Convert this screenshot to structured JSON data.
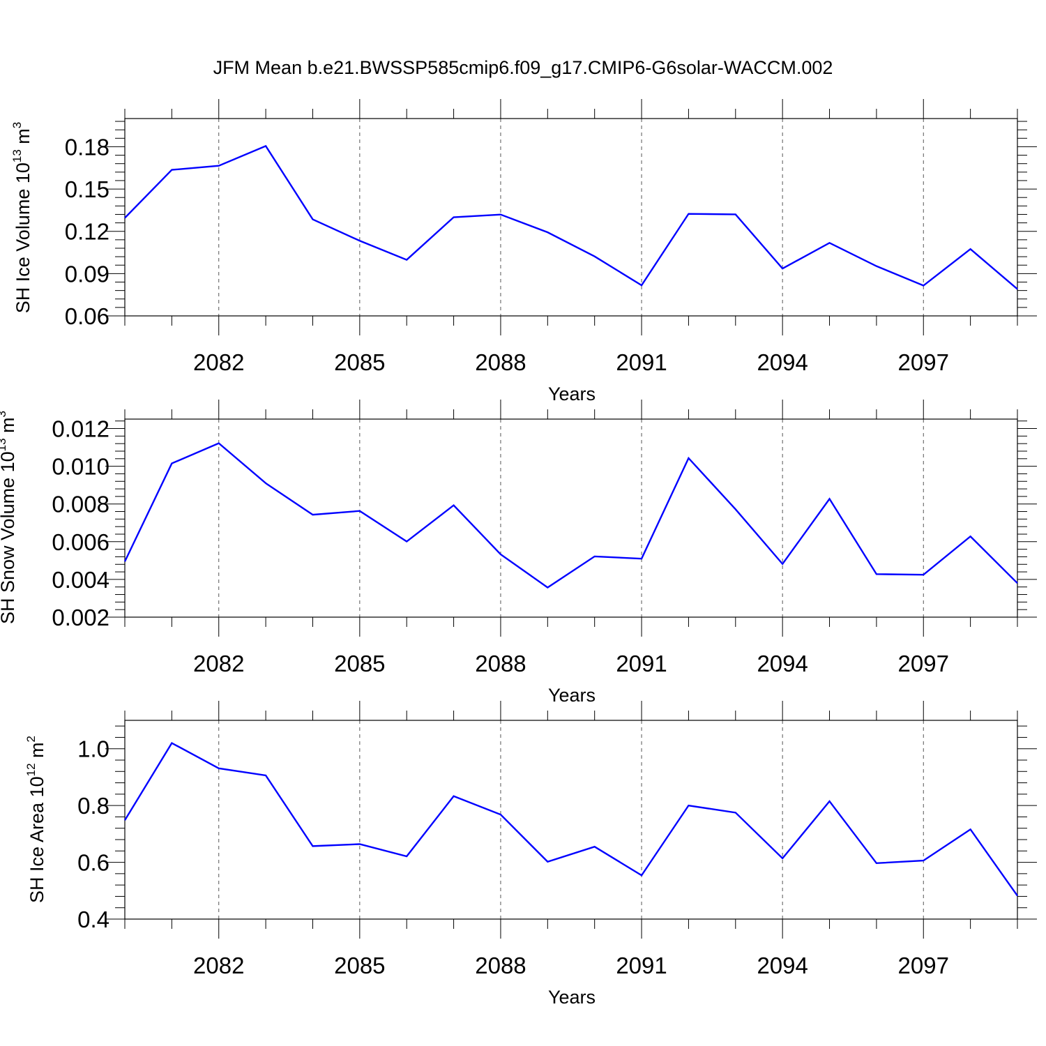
{
  "title": "JFM Mean b.e21.BWSSP585cmip6.f09_g17.CMIP6-G6solar-WACCM.002",
  "chart_data": [
    {
      "type": "line",
      "ylabel": "SH Ice Volume 10",
      "ylabel_exp": "13",
      "ylabel_unit": " m",
      "ylabel_unit_exp": "3",
      "xlabel": "Years",
      "xlim": [
        2080,
        2099
      ],
      "ylim": [
        0.06,
        0.2
      ],
      "yticks": [
        0.06,
        0.09,
        0.12,
        0.15,
        0.18
      ],
      "ytick_labels": [
        "0.06",
        "0.09",
        "0.12",
        "0.15",
        "0.18"
      ],
      "xticks": [
        2082,
        2085,
        2088,
        2091,
        2094,
        2097
      ],
      "xtick_labels": [
        "2082",
        "2085",
        "2088",
        "2091",
        "2094",
        "2097"
      ],
      "grid": "vertical dashed at major x ticks",
      "color": "#0000ff",
      "x": [
        2080,
        2081,
        2082,
        2083,
        2084,
        2085,
        2086,
        2087,
        2088,
        2089,
        2090,
        2091,
        2092,
        2093,
        2094,
        2095,
        2096,
        2097,
        2098,
        2099
      ],
      "values": [
        0.1295,
        0.1636,
        0.1665,
        0.1805,
        0.1285,
        0.1133,
        0.0998,
        0.13,
        0.1319,
        0.1193,
        0.1022,
        0.0817,
        0.1324,
        0.132,
        0.0936,
        0.1118,
        0.0953,
        0.0815,
        0.1074,
        0.079
      ]
    },
    {
      "type": "line",
      "ylabel": "SH Snow Volume 10",
      "ylabel_exp": "13",
      "ylabel_unit": " m",
      "ylabel_unit_exp": "3",
      "xlabel": "Years",
      "xlim": [
        2080,
        2099
      ],
      "ylim": [
        0.002,
        0.0125
      ],
      "yticks": [
        0.002,
        0.004,
        0.006,
        0.008,
        0.01,
        0.012
      ],
      "ytick_labels": [
        "0.002",
        "0.004",
        "0.006",
        "0.008",
        "0.010",
        "0.012"
      ],
      "xticks": [
        2082,
        2085,
        2088,
        2091,
        2094,
        2097
      ],
      "xtick_labels": [
        "2082",
        "2085",
        "2088",
        "2091",
        "2094",
        "2097"
      ],
      "grid": "vertical dashed at major x ticks",
      "color": "#0000ff",
      "x": [
        2080,
        2081,
        2082,
        2083,
        2084,
        2085,
        2086,
        2087,
        2088,
        2089,
        2090,
        2091,
        2092,
        2093,
        2094,
        2095,
        2096,
        2097,
        2098,
        2099
      ],
      "values": [
        0.00495,
        0.01015,
        0.01122,
        0.0091,
        0.00743,
        0.00763,
        0.00601,
        0.00793,
        0.00533,
        0.00357,
        0.00522,
        0.0051,
        0.01043,
        0.00772,
        0.00482,
        0.00827,
        0.00428,
        0.00425,
        0.00628,
        0.0038
      ]
    },
    {
      "type": "line",
      "ylabel": "SH Ice Area 10",
      "ylabel_exp": "12",
      "ylabel_unit": " m",
      "ylabel_unit_exp": "2",
      "xlabel": "Years",
      "xlim": [
        2080,
        2099
      ],
      "ylim": [
        0.4,
        1.1
      ],
      "yticks": [
        0.4,
        0.6,
        0.8,
        1.0
      ],
      "ytick_labels": [
        "0.4",
        "0.6",
        "0.8",
        "1.0"
      ],
      "xticks": [
        2082,
        2085,
        2088,
        2091,
        2094,
        2097
      ],
      "xtick_labels": [
        "2082",
        "2085",
        "2088",
        "2091",
        "2094",
        "2097"
      ],
      "grid": "vertical dashed at major x ticks",
      "color": "#0000ff",
      "x": [
        2080,
        2081,
        2082,
        2083,
        2084,
        2085,
        2086,
        2087,
        2088,
        2089,
        2090,
        2091,
        2092,
        2093,
        2094,
        2095,
        2096,
        2097,
        2098,
        2099
      ],
      "values": [
        0.748,
        1.02,
        0.931,
        0.906,
        0.657,
        0.664,
        0.621,
        0.833,
        0.768,
        0.602,
        0.655,
        0.554,
        0.8,
        0.775,
        0.614,
        0.815,
        0.597,
        0.606,
        0.716,
        0.482
      ]
    }
  ]
}
